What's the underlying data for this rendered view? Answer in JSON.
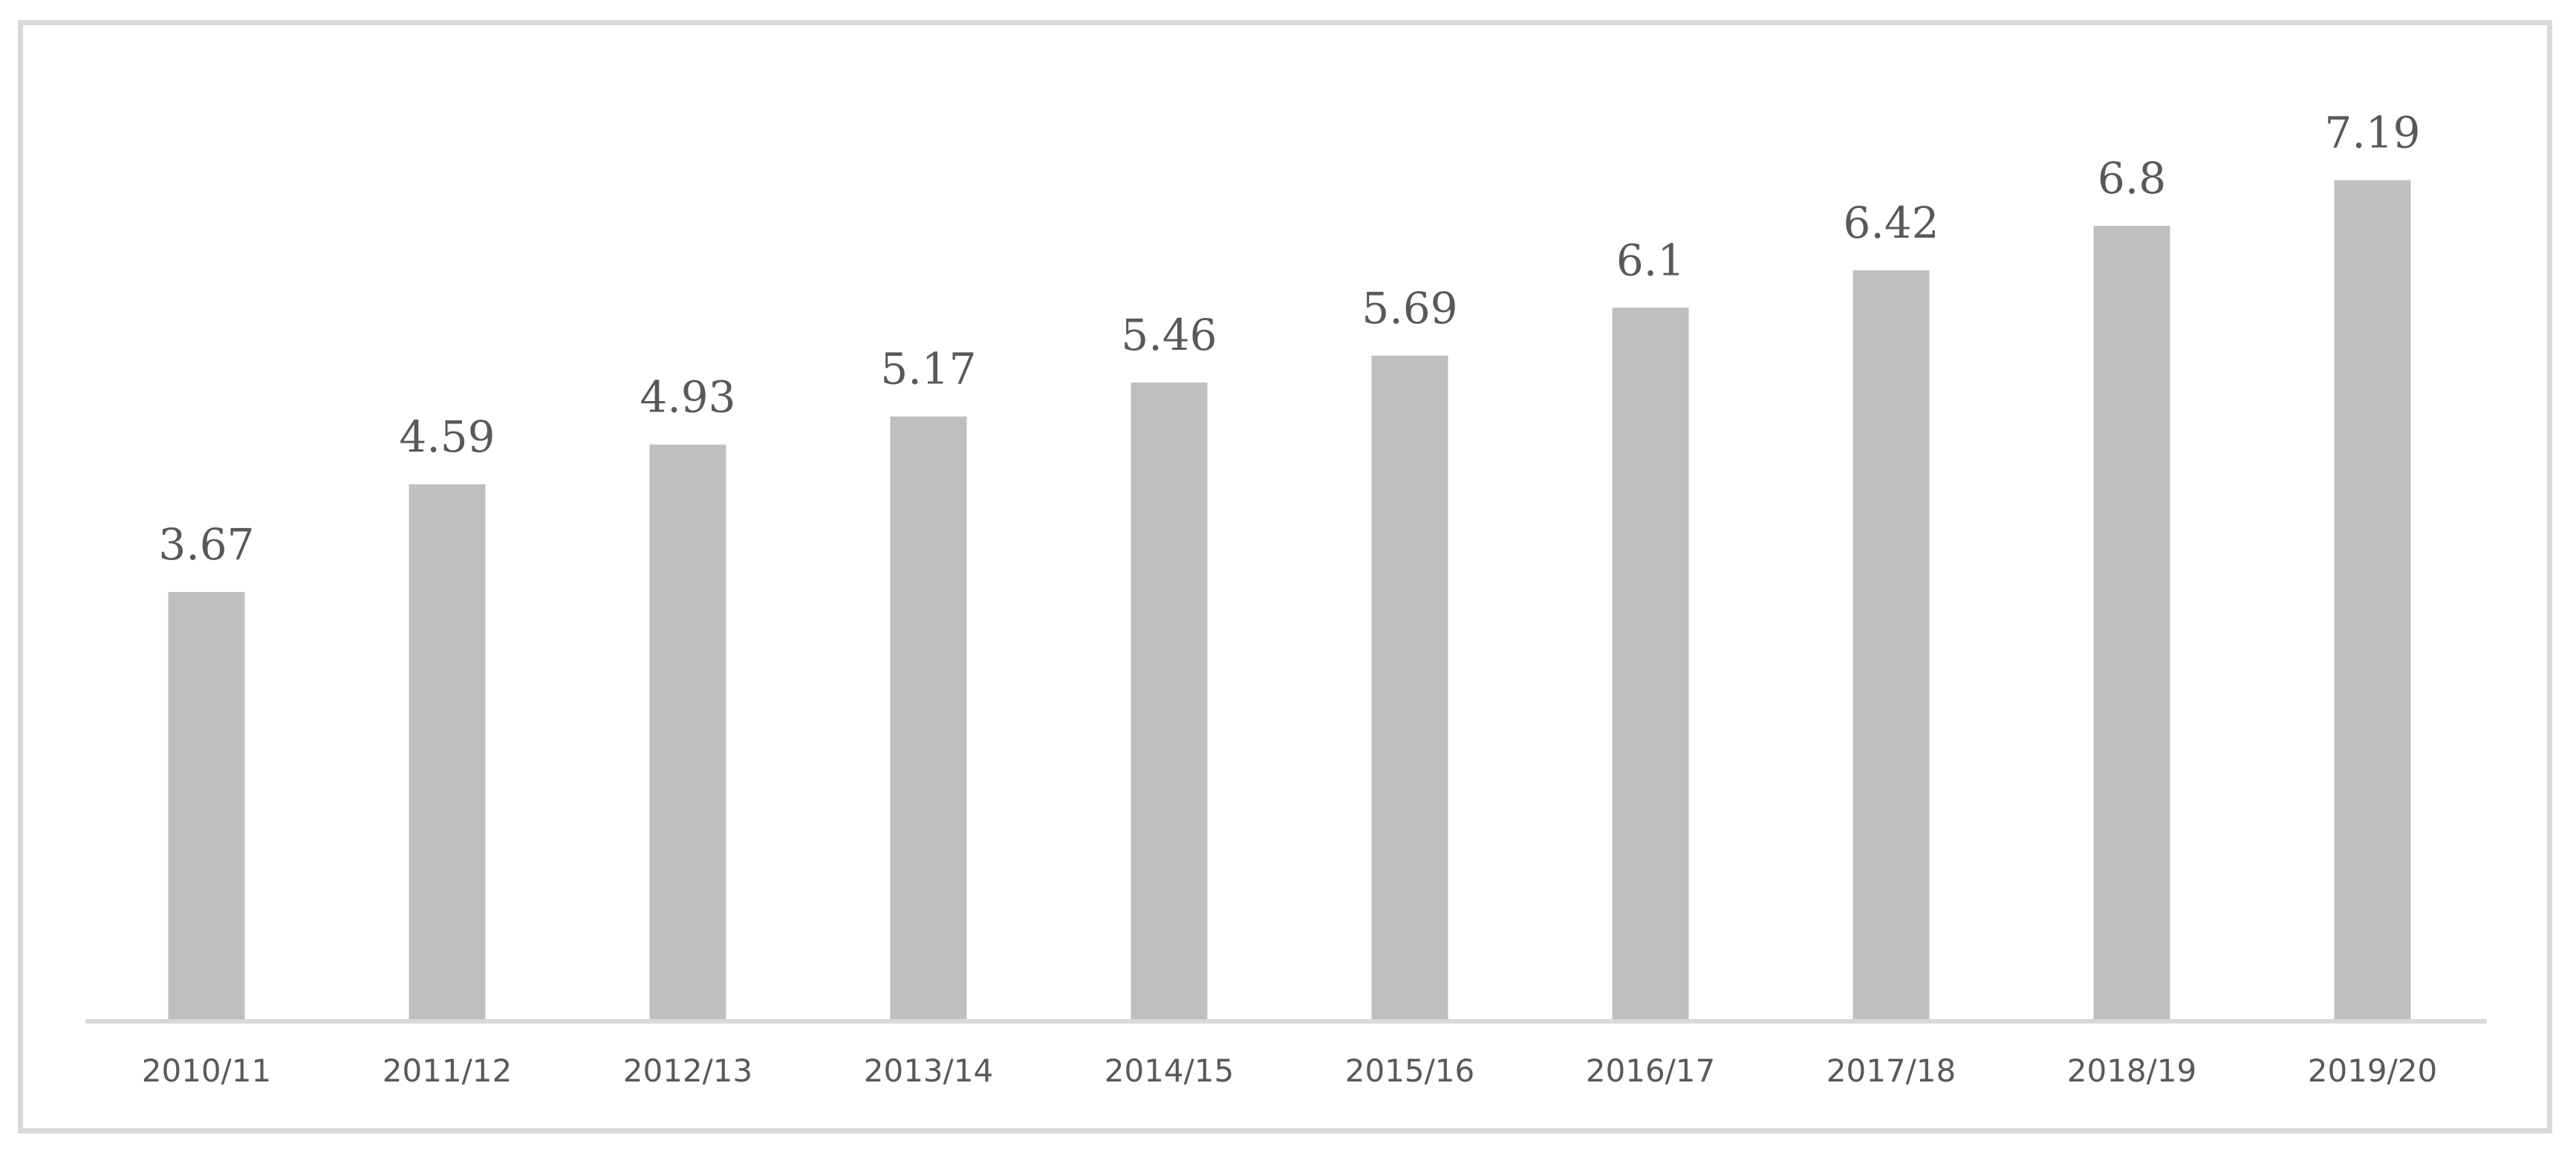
{
  "chart_data": {
    "type": "bar",
    "title": "",
    "xlabel": "",
    "ylabel": "",
    "categories": [
      "2010/11",
      "2011/12",
      "2012/13",
      "2013/14",
      "2014/15",
      "2015/16",
      "2016/17",
      "2017/18",
      "2018/19",
      "2019/20"
    ],
    "values": [
      3.67,
      4.59,
      4.93,
      5.17,
      5.46,
      5.69,
      6.1,
      6.42,
      6.8,
      7.19
    ],
    "value_labels": [
      "3.67",
      "4.59",
      "4.93",
      "5.17",
      "5.46",
      "5.69",
      "6.1",
      "6.42",
      "6.8",
      "7.19"
    ],
    "ylim": [
      0,
      8.8
    ],
    "grid": false,
    "legend": "none",
    "colors": {
      "bar": "#bfbfbf",
      "axis": "#d9d9d9",
      "text": "#595959",
      "frame": "#d9d9d9"
    }
  }
}
